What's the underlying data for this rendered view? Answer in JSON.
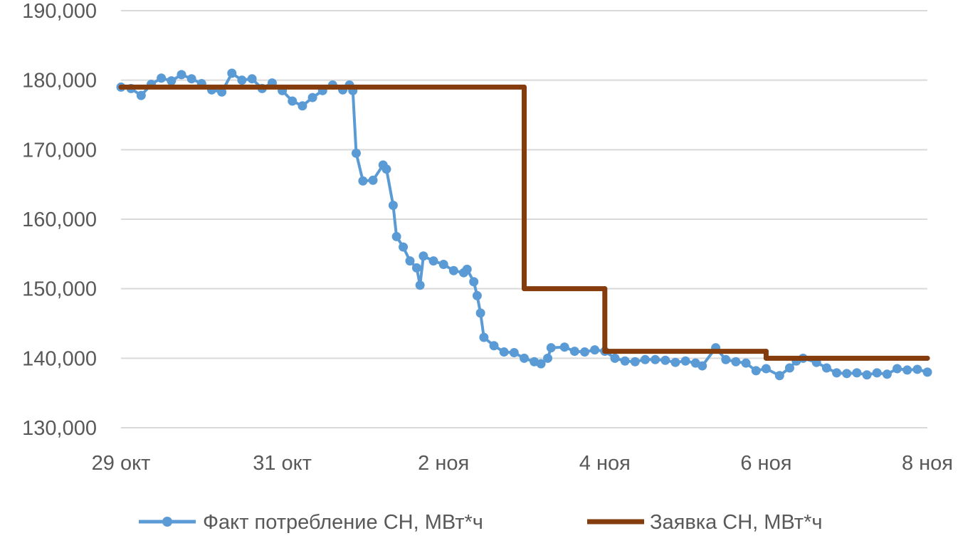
{
  "chart_data": {
    "type": "line",
    "title": "",
    "xlabel": "",
    "ylabel": "",
    "ylim": [
      130000,
      190000
    ],
    "xlim": [
      "10-29 00:00",
      "11-08 00:00"
    ],
    "grid": true,
    "legend_position": "bottom",
    "y_ticks": [
      {
        "value": 190000,
        "label": "190,000"
      },
      {
        "value": 180000,
        "label": "180,000"
      },
      {
        "value": 170000,
        "label": "170,000"
      },
      {
        "value": 160000,
        "label": "160,000"
      },
      {
        "value": 150000,
        "label": "150,000"
      },
      {
        "value": 140000,
        "label": "140,000"
      },
      {
        "value": 130000,
        "label": "130,000"
      }
    ],
    "x_ticks": [
      {
        "value": "10-29 00:00",
        "label": "29 окт"
      },
      {
        "value": "10-31 00:00",
        "label": "31 окт"
      },
      {
        "value": "11-02 00:00",
        "label": "2 ноя"
      },
      {
        "value": "11-04 00:00",
        "label": "4 ноя"
      },
      {
        "value": "11-06 00:00",
        "label": "6 ноя"
      },
      {
        "value": "11-08 00:00",
        "label": "8 ноя"
      }
    ],
    "series": [
      {
        "name": "Факт потребление СН, МВт*ч",
        "color": "#5B9BD5",
        "marker": "circle",
        "points": [
          [
            "10-29 00:00",
            179000
          ],
          [
            "10-29 03:00",
            178800
          ],
          [
            "10-29 06:00",
            177800
          ],
          [
            "10-29 09:00",
            179400
          ],
          [
            "10-29 12:00",
            180300
          ],
          [
            "10-29 15:00",
            179900
          ],
          [
            "10-29 18:00",
            180800
          ],
          [
            "10-29 21:00",
            180200
          ],
          [
            "10-30 00:00",
            179500
          ],
          [
            "10-30 03:00",
            178600
          ],
          [
            "10-30 06:00",
            178300
          ],
          [
            "10-30 09:00",
            181000
          ],
          [
            "10-30 12:00",
            180000
          ],
          [
            "10-30 15:00",
            180200
          ],
          [
            "10-30 18:00",
            178800
          ],
          [
            "10-30 21:00",
            179600
          ],
          [
            "10-31 00:00",
            178500
          ],
          [
            "10-31 03:00",
            177000
          ],
          [
            "10-31 06:00",
            176300
          ],
          [
            "10-31 09:00",
            177500
          ],
          [
            "10-31 12:00",
            178500
          ],
          [
            "10-31 15:00",
            179300
          ],
          [
            "10-31 18:00",
            178600
          ],
          [
            "10-31 20:00",
            179300
          ],
          [
            "10-31 21:00",
            178500
          ],
          [
            "10-31 22:00",
            169500
          ],
          [
            "11-01 00:00",
            165500
          ],
          [
            "11-01 03:00",
            165600
          ],
          [
            "11-01 06:00",
            167800
          ],
          [
            "11-01 07:00",
            167200
          ],
          [
            "11-01 09:00",
            162000
          ],
          [
            "11-01 10:00",
            157500
          ],
          [
            "11-01 12:00",
            156000
          ],
          [
            "11-01 14:00",
            154000
          ],
          [
            "11-01 16:00",
            153000
          ],
          [
            "11-01 17:00",
            150500
          ],
          [
            "11-01 18:00",
            154700
          ],
          [
            "11-01 21:00",
            154000
          ],
          [
            "11-02 00:00",
            153500
          ],
          [
            "11-02 03:00",
            152600
          ],
          [
            "11-02 06:00",
            152300
          ],
          [
            "11-02 07:00",
            152800
          ],
          [
            "11-02 09:00",
            151000
          ],
          [
            "11-02 10:00",
            149000
          ],
          [
            "11-02 11:00",
            146500
          ],
          [
            "11-02 12:00",
            143000
          ],
          [
            "11-02 15:00",
            141800
          ],
          [
            "11-02 18:00",
            140900
          ],
          [
            "11-02 21:00",
            140800
          ],
          [
            "11-03 00:00",
            140000
          ],
          [
            "11-03 03:00",
            139500
          ],
          [
            "11-03 05:00",
            139200
          ],
          [
            "11-03 07:00",
            140000
          ],
          [
            "11-03 08:00",
            141500
          ],
          [
            "11-03 12:00",
            141600
          ],
          [
            "11-03 15:00",
            141000
          ],
          [
            "11-03 18:00",
            140900
          ],
          [
            "11-03 21:00",
            141200
          ],
          [
            "11-04 00:00",
            141000
          ],
          [
            "11-04 03:00",
            140000
          ],
          [
            "11-04 06:00",
            139600
          ],
          [
            "11-04 09:00",
            139500
          ],
          [
            "11-04 12:00",
            139800
          ],
          [
            "11-04 15:00",
            139800
          ],
          [
            "11-04 18:00",
            139700
          ],
          [
            "11-04 21:00",
            139400
          ],
          [
            "11-05 00:00",
            139600
          ],
          [
            "11-05 03:00",
            139300
          ],
          [
            "11-05 05:00",
            138900
          ],
          [
            "11-05 09:00",
            141500
          ],
          [
            "11-05 12:00",
            139800
          ],
          [
            "11-05 15:00",
            139500
          ],
          [
            "11-05 18:00",
            139300
          ],
          [
            "11-05 21:00",
            138200
          ],
          [
            "11-06 00:00",
            138500
          ],
          [
            "11-06 04:00",
            137500
          ],
          [
            "11-06 07:00",
            138600
          ],
          [
            "11-06 09:00",
            139600
          ],
          [
            "11-06 11:00",
            140000
          ],
          [
            "11-06 15:00",
            139400
          ],
          [
            "11-06 18:00",
            138600
          ],
          [
            "11-06 21:00",
            137900
          ],
          [
            "11-07 00:00",
            137800
          ],
          [
            "11-07 03:00",
            137900
          ],
          [
            "11-07 06:00",
            137600
          ],
          [
            "11-07 09:00",
            137900
          ],
          [
            "11-07 12:00",
            137700
          ],
          [
            "11-07 15:00",
            138500
          ],
          [
            "11-07 18:00",
            138300
          ],
          [
            "11-07 21:00",
            138400
          ],
          [
            "11-08 00:00",
            138000
          ]
        ]
      },
      {
        "name": "Заявка СН, МВт*ч",
        "color": "#843C0C",
        "marker": "none",
        "points": [
          [
            "10-29 00:00",
            179000
          ],
          [
            "11-03 00:00",
            179000
          ],
          [
            "11-03 00:00",
            150000
          ],
          [
            "11-04 00:00",
            150000
          ],
          [
            "11-04 00:00",
            141000
          ],
          [
            "11-06 00:00",
            141000
          ],
          [
            "11-06 00:00",
            140000
          ],
          [
            "11-08 00:00",
            140000
          ]
        ]
      }
    ]
  }
}
